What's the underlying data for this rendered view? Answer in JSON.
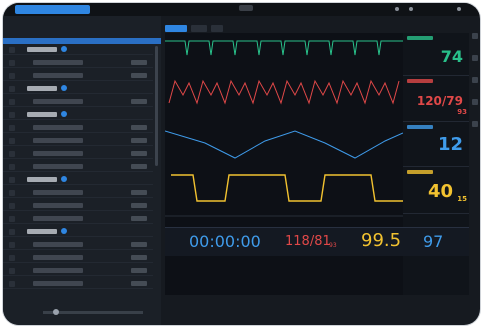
{
  "window": {
    "title": ""
  },
  "left_panel": {
    "header": "",
    "rows": [
      {
        "label": "",
        "value": "",
        "type": "section"
      },
      {
        "label": "",
        "value": "",
        "type": "row"
      },
      {
        "label": "",
        "value": "",
        "type": "row"
      },
      {
        "label": "",
        "value": "",
        "type": "section"
      },
      {
        "label": "",
        "value": "",
        "type": "row"
      },
      {
        "label": "",
        "value": "",
        "type": "section"
      },
      {
        "label": "",
        "value": "",
        "type": "row"
      },
      {
        "label": "",
        "value": "",
        "type": "row"
      },
      {
        "label": "",
        "value": "",
        "type": "row"
      },
      {
        "label": "",
        "value": "",
        "type": "row"
      },
      {
        "label": "",
        "value": "",
        "type": "section"
      },
      {
        "label": "",
        "value": "",
        "type": "row"
      },
      {
        "label": "",
        "value": "",
        "type": "row"
      },
      {
        "label": "",
        "value": "",
        "type": "row"
      },
      {
        "label": "",
        "value": "",
        "type": "section"
      },
      {
        "label": "",
        "value": "",
        "type": "row"
      },
      {
        "label": "",
        "value": "",
        "type": "row"
      },
      {
        "label": "",
        "value": "",
        "type": "row"
      },
      {
        "label": "",
        "value": "",
        "type": "row"
      }
    ]
  },
  "tabs": [
    "",
    "",
    ""
  ],
  "vitals": {
    "hr": {
      "value": "74",
      "color": "#29c08a"
    },
    "abp": {
      "value": "120/79",
      "sub": "93",
      "color": "#e04848"
    },
    "co2": {
      "value": "12",
      "color": "#3f9bea"
    },
    "resp": {
      "value": "40",
      "sub": "15",
      "color": "#f2c230"
    },
    "timer": {
      "value": "00:00:00",
      "color": "#3f9bea"
    },
    "nibp": {
      "value": "118/81",
      "sub": "93",
      "color": "#e04848"
    },
    "temp": {
      "value": "99.5",
      "color": "#f2c230"
    },
    "spo2": {
      "value": "97",
      "color": "#3f9bea"
    }
  },
  "status": {
    "left": "",
    "right": ""
  }
}
